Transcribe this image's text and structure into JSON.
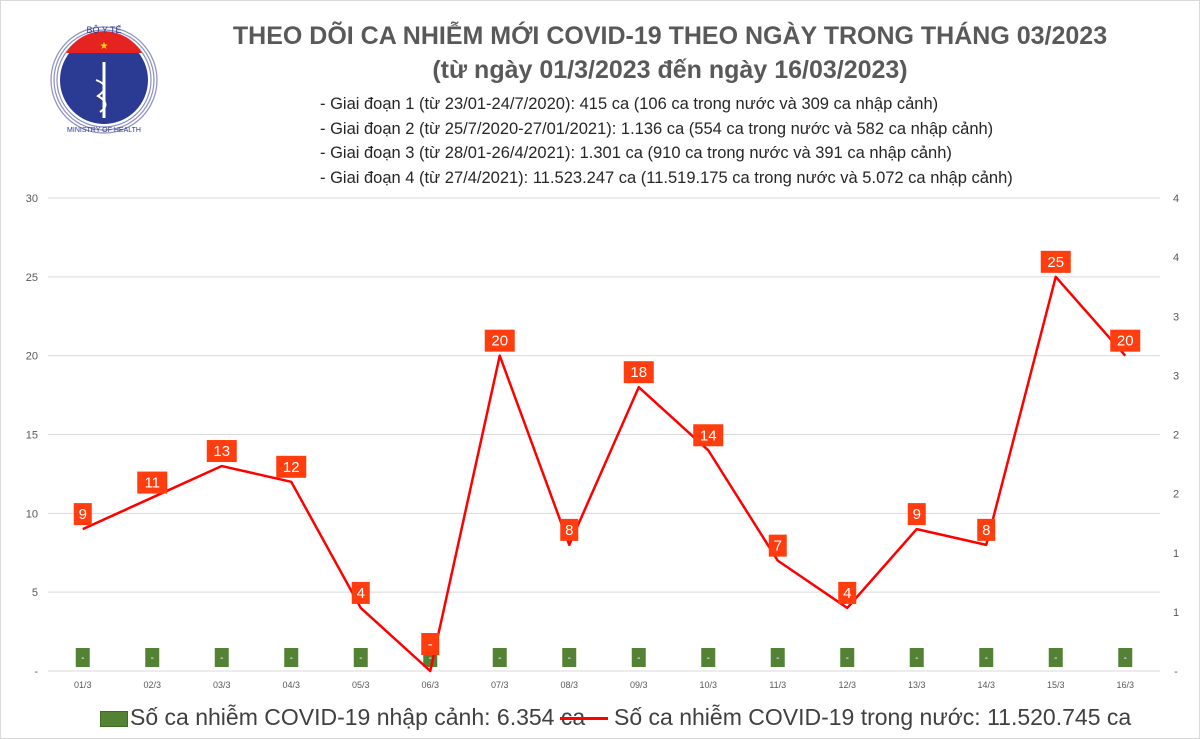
{
  "logo": {
    "text_top": "BỘ Y TẾ",
    "text_bottom": "MINISTRY OF HEALTH"
  },
  "title": "THEO DÕI CA NHIỄM MỚI COVID-19 THEO NGÀY TRONG THÁNG 03/2023",
  "subtitle": "(từ ngày 01/3/2023 đến ngày 16/03/2023)",
  "notes": [
    "- Giai đoạn 1 (từ 23/01-24/7/2020): 415 ca (106 ca trong nước và 309 ca nhập cảnh)",
    "- Giai đoạn 2 (từ 25/7/2020-27/01/2021): 1.136 ca (554 ca trong nước và 582 ca nhập cảnh)",
    "- Giai đoạn 3 (từ 28/01-26/4/2021): 1.301 ca (910 ca trong nước và 391 ca nhập cảnh)",
    "- Giai đoạn 4 (từ 27/4/2021): 11.523.247 ca (11.519.175 ca trong nước và 5.072 ca nhập cảnh)"
  ],
  "chart_data": {
    "type": "line",
    "categories": [
      "01/3",
      "02/3",
      "03/3",
      "04/3",
      "05/3",
      "06/3",
      "07/3",
      "08/3",
      "09/3",
      "10/3",
      "11/3",
      "12/3",
      "13/3",
      "14/3",
      "15/3",
      "16/3"
    ],
    "series": [
      {
        "name": "Số ca nhiễm COVID-19 trong nước: 11.520.745 ca",
        "type": "line",
        "axis": "left",
        "color": "#ff0000",
        "values": [
          9,
          11,
          13,
          12,
          4,
          0,
          20,
          8,
          18,
          14,
          7,
          4,
          9,
          8,
          25,
          20
        ],
        "labels": [
          "9",
          "11",
          "13",
          "12",
          "4",
          "-",
          "20",
          "8",
          "18",
          "14",
          "7",
          "4",
          "9",
          "8",
          "25",
          "20"
        ]
      },
      {
        "name": "Số ca nhiễm COVID-19 nhập cảnh: 6.354 ca",
        "type": "bar",
        "axis": "right",
        "color": "#548235",
        "values": [
          0,
          0,
          0,
          0,
          0,
          0,
          0,
          0,
          0,
          0,
          0,
          0,
          0,
          0,
          0,
          0
        ],
        "labels": [
          "-",
          "-",
          "-",
          "-",
          "-",
          "-",
          "-",
          "-",
          "-",
          "-",
          "-",
          "-",
          "-",
          "-",
          "-",
          "-"
        ]
      }
    ],
    "left_axis": {
      "ylim": [
        0,
        30
      ],
      "ticks": [
        "-",
        "5",
        "10",
        "15",
        "20",
        "25",
        "30"
      ]
    },
    "right_axis": {
      "ticks": [
        "-",
        "1",
        "1",
        "2",
        "2",
        "3",
        "3",
        "4",
        "4"
      ]
    },
    "grid": true,
    "legend_placement": "bottom",
    "label_color": "#ff3d0f"
  }
}
